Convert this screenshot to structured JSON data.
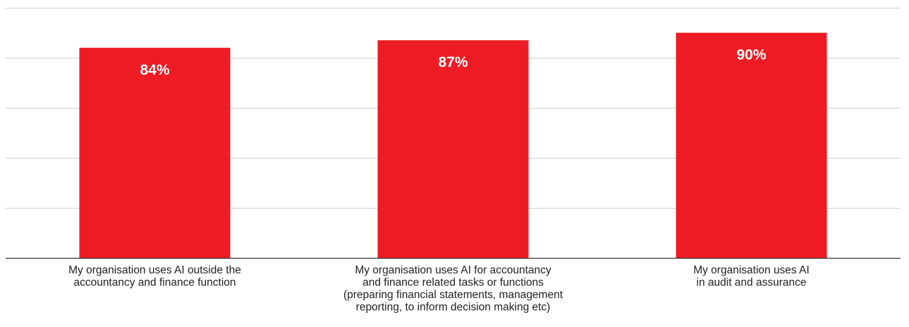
{
  "chart_data": {
    "type": "bar",
    "categories": [
      [
        "My organisation uses AI outside the",
        "accountancy and finance function"
      ],
      [
        "My organisation uses AI for accountancy",
        "and finance related tasks or functions",
        "(preparing financial statements, management",
        "reporting, to inform decision making etc)"
      ],
      [
        "My organisation uses AI",
        "in audit and assurance"
      ]
    ],
    "values": [
      84,
      87,
      90
    ],
    "data_labels": [
      "84%",
      "87%",
      "90%"
    ],
    "ylim": [
      0,
      100
    ],
    "grid": true,
    "bar_color": "#ED1C24",
    "grid_color": "#D0D0D0",
    "axis_color": "#333333",
    "label_color": "#FFFFFF",
    "title": "",
    "xlabel": "",
    "ylabel": ""
  }
}
